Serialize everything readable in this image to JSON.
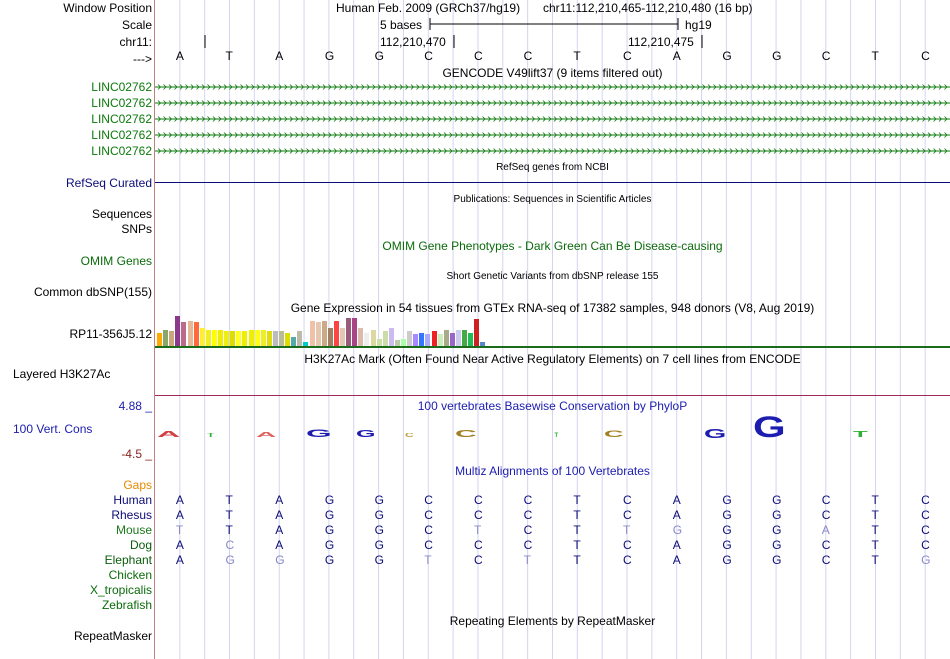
{
  "header": {
    "window_position_label": "Window Position",
    "scale_label": "Scale",
    "chrom_label": "chr11:",
    "arrow_label": "--->",
    "assembly": "Human Feb. 2009 (GRCh37/hg19)",
    "position": "chr11:112,210,465-112,210,480 (16 bp)",
    "scale_text": "5 bases",
    "db": "hg19",
    "tick1": "112,210,470",
    "tick2": "112,210,475"
  },
  "sequence": [
    "A",
    "T",
    "A",
    "G",
    "G",
    "C",
    "C",
    "C",
    "T",
    "C",
    "A",
    "G",
    "G",
    "C",
    "T",
    "C"
  ],
  "gencode": {
    "title": "GENCODE V49lift37 (9 items filtered out)",
    "items": [
      "LINC02762",
      "LINC02762",
      "LINC02762",
      "LINC02762",
      "LINC02762"
    ],
    "color": "#0b7a0b"
  },
  "refseq": {
    "label": "RefSeq Curated",
    "title": "RefSeq genes from NCBI",
    "color": "#0c0c78"
  },
  "pubs": {
    "title": "Publications: Sequences in Scientific Articles",
    "label1": "Sequences",
    "label2": "SNPs"
  },
  "omim": {
    "title": "OMIM Gene Phenotypes - Dark Green Can Be Disease-causing",
    "label": "OMIM Genes",
    "color": "#0b6b0b"
  },
  "dbsnp": {
    "title": "Short Genetic Variants from dbSNP release 155",
    "label": "Common dbSNP(155)"
  },
  "gtex": {
    "title": "Gene Expression in 54 tissues from GTEx RNA-seq of 17382 samples, 948 donors (V8, Aug 2019)",
    "label": "RP11-356J5.12",
    "bar_levels": [
      0.45,
      0.55,
      0.5,
      1.0,
      0.8,
      0.85,
      0.8,
      0.6,
      0.55,
      0.55,
      0.55,
      0.5,
      0.5,
      0.5,
      0.5,
      0.55,
      0.55,
      0.55,
      0.5,
      0.5,
      0.5,
      0.45,
      0.3,
      0.5,
      0.15,
      0.85,
      0.8,
      0.85,
      0.6,
      0.85,
      0.6,
      0.95,
      0.95,
      0.6,
      0.45,
      0.55,
      0.25,
      0.5,
      0.6,
      0.2,
      0.25,
      0.5,
      0.4,
      0.45,
      0.4,
      0.5,
      0.4,
      0.55,
      0.45,
      0.55,
      0.55,
      0.45,
      0.9,
      0.15
    ],
    "bar_colors": [
      "#ffaa00",
      "#8aa66a",
      "#c8a878",
      "#8b3a8b",
      "#bb6a8a",
      "#e6b89a",
      "#ff6a3a",
      "#ffee33",
      "#eeee22",
      "#ffff00",
      "#eeee00",
      "#eeee11",
      "#dddd00",
      "#ffff22",
      "#eeee00",
      "#eeee00",
      "#ffff11",
      "#eeee22",
      "#dddd11",
      "#bbbbbb",
      "#bbbb99",
      "#dddd00",
      "#55aaaa",
      "#bbbbaa",
      "#00cccc",
      "#f0c0a8",
      "#e6c8b0",
      "#ccaa88",
      "#a08060",
      "#ff4444",
      "#e3c9b5",
      "#9a5a7a",
      "#aa4488",
      "#ddbbaa",
      "#eee",
      "#ddd8a0",
      "#cce0aa",
      "#ccddaa",
      "#ccbbee",
      "#bbccaa",
      "#aaffaa",
      "#ccc",
      "#aa88ff",
      "#3377ff",
      "#aaaaff",
      "#ee2222",
      "#cceebb",
      "#aaaa88",
      "#9966cc",
      "#ccccee",
      "#44aa44",
      "#22bb55",
      "#cc2222",
      "#5588cc"
    ]
  },
  "h3k27ac": {
    "title": "H3K27Ac Mark (Often Found Near Active Regulatory Elements) on 7 cell lines from ENCODE",
    "label": "Layered H3K27Ac"
  },
  "cons": {
    "title": "100 vertebrates Basewise Conservation by PhyloP",
    "label": "100 Vert. Cons",
    "ymax": "4.88 _",
    "ymin": "-4.5 _",
    "color": "#1c1cb0"
  },
  "multiz": {
    "title": "Multiz Alignments of 100 Vertebrates",
    "gaps_label": "Gaps",
    "species": [
      {
        "name": "Human",
        "seq": "ATAGGCCCTCAGGCTC",
        "dim": "0000000000000000"
      },
      {
        "name": "Rhesus",
        "seq": "ATAGGCCCTCAGGCTC",
        "dim": "0000000000000000"
      },
      {
        "name": "Mouse",
        "seq": "TTAGGCTCTTGGGATC",
        "dim": "1000001001100100"
      },
      {
        "name": "Dog",
        "seq": "ACAGGCCCTCAGGCTC",
        "dim": "0100000000000000"
      },
      {
        "name": "Elephant",
        "seq": "AGGGGTCTTCAGGCTG",
        "dim": "0110010100000001"
      },
      {
        "name": "Chicken",
        "seq": "",
        "dim": ""
      },
      {
        "name": "X_tropicalis",
        "seq": "",
        "dim": ""
      },
      {
        "name": "Zebrafish",
        "seq": "",
        "dim": ""
      }
    ]
  },
  "repeatmasker": {
    "title": "Repeating Elements by RepeatMasker",
    "label": "RepeatMasker"
  }
}
